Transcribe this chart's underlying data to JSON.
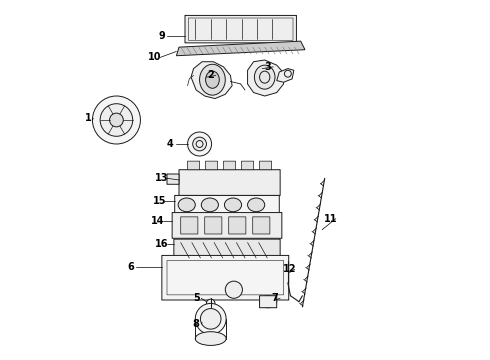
{
  "bg_color": "#ffffff",
  "line_color": "#1a1a1a",
  "lw": 0.7,
  "fig_w": 4.9,
  "fig_h": 3.6,
  "dpi": 100,
  "labels": [
    [
      "9",
      155,
      42
    ],
    [
      "10",
      148,
      67
    ],
    [
      "2",
      212,
      95
    ],
    [
      "3",
      278,
      88
    ],
    [
      "1",
      88,
      138
    ],
    [
      "4",
      162,
      175
    ],
    [
      "13",
      155,
      210
    ],
    [
      "15",
      152,
      237
    ],
    [
      "14",
      150,
      263
    ],
    [
      "16",
      155,
      288
    ],
    [
      "11",
      332,
      255
    ],
    [
      "6",
      118,
      310
    ],
    [
      "12",
      303,
      318
    ],
    [
      "5",
      196,
      348
    ],
    [
      "7",
      285,
      355
    ],
    [
      "8",
      196,
      385
    ]
  ]
}
